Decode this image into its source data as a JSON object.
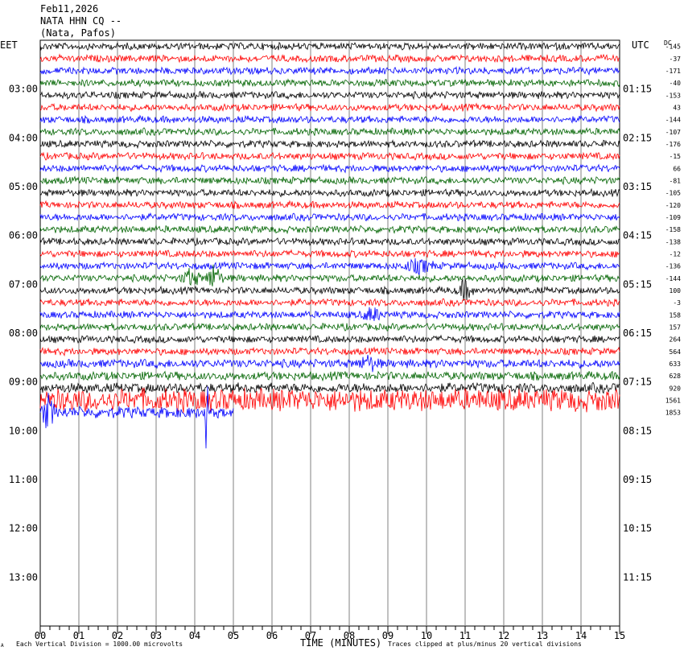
{
  "header": {
    "date": "Feb11,2026",
    "station": "NATA HHN CQ --",
    "location": "(Nata, Pafos)"
  },
  "left_zone": "EET",
  "right_zone": "UTC",
  "dc_label": "DC",
  "footer": {
    "xlabel": "TIME (MINUTES)",
    "scale_note": "Each Vertical Division = 1000.00 microvolts",
    "clip_note": "Traces clipped at plus/minus 20 vertical divisions",
    "corner_mark": "A"
  },
  "colors": {
    "trace_cycle": [
      "#000000",
      "#ff0000",
      "#0000ff",
      "#006400"
    ],
    "grid": "#808080"
  },
  "chart_data": {
    "type": "line",
    "xlim": [
      0,
      15
    ],
    "x_ticks": [
      "00",
      "01",
      "02",
      "03",
      "04",
      "05",
      "06",
      "07",
      "08",
      "09",
      "10",
      "11",
      "12",
      "13",
      "14",
      "15"
    ],
    "minor_ticks_per_minute": 4,
    "traces_per_hour": 4,
    "total_hour_rows": 12,
    "left_hours": [
      "03:00",
      "04:00",
      "05:00",
      "06:00",
      "07:00",
      "08:00",
      "09:00",
      "10:00",
      "11:00",
      "12:00",
      "13:00"
    ],
    "right_hours": [
      "01:15",
      "02:15",
      "03:15",
      "04:15",
      "05:15",
      "06:15",
      "07:15",
      "08:15",
      "09:15",
      "10:15",
      "11:15"
    ],
    "dc_offsets": [
      "-145",
      "-37",
      "-171",
      "-40",
      "-153",
      "43",
      "-144",
      "-107",
      "-176",
      "-15",
      "66",
      "-81",
      "-105",
      "-120",
      "-109",
      "-158",
      "-138",
      "-12",
      "-136",
      "-144",
      "100",
      "-3",
      "158",
      "157",
      "264",
      "564",
      "633",
      "628",
      "920",
      "1561",
      "1853"
    ],
    "trace_amplitude": [
      5,
      5,
      5,
      5,
      5,
      5,
      5,
      5,
      5,
      5,
      5,
      5,
      5,
      5,
      5,
      5,
      5,
      5,
      5,
      5,
      5,
      5,
      5,
      5,
      5,
      5,
      6,
      6,
      7,
      16,
      8
    ],
    "trace_end_minute": [
      15,
      15,
      15,
      15,
      15,
      15,
      15,
      15,
      15,
      15,
      15,
      15,
      15,
      15,
      15,
      15,
      15,
      15,
      15,
      15,
      15,
      15,
      15,
      15,
      15,
      15,
      15,
      15,
      15,
      15,
      5
    ],
    "events": [
      {
        "trace": 19,
        "minute": 3.9,
        "amplitude": 10,
        "width": 0.3
      },
      {
        "trace": 19,
        "minute": 4.5,
        "amplitude": 16,
        "width": 0.25
      },
      {
        "trace": 18,
        "minute": 9.8,
        "amplitude": 7,
        "width": 0.5
      },
      {
        "trace": 20,
        "minute": 11.0,
        "amplitude": 12,
        "width": 0.25
      },
      {
        "trace": 22,
        "minute": 8.6,
        "amplitude": 8,
        "width": 0.3
      },
      {
        "trace": 26,
        "minute": 8.5,
        "amplitude": 8,
        "width": 0.35
      },
      {
        "trace": 30,
        "minute": 4.3,
        "amplitude": 45,
        "width": 0.08
      },
      {
        "trace": 30,
        "minute": 0.2,
        "amplitude": 20,
        "width": 0.2
      }
    ]
  }
}
